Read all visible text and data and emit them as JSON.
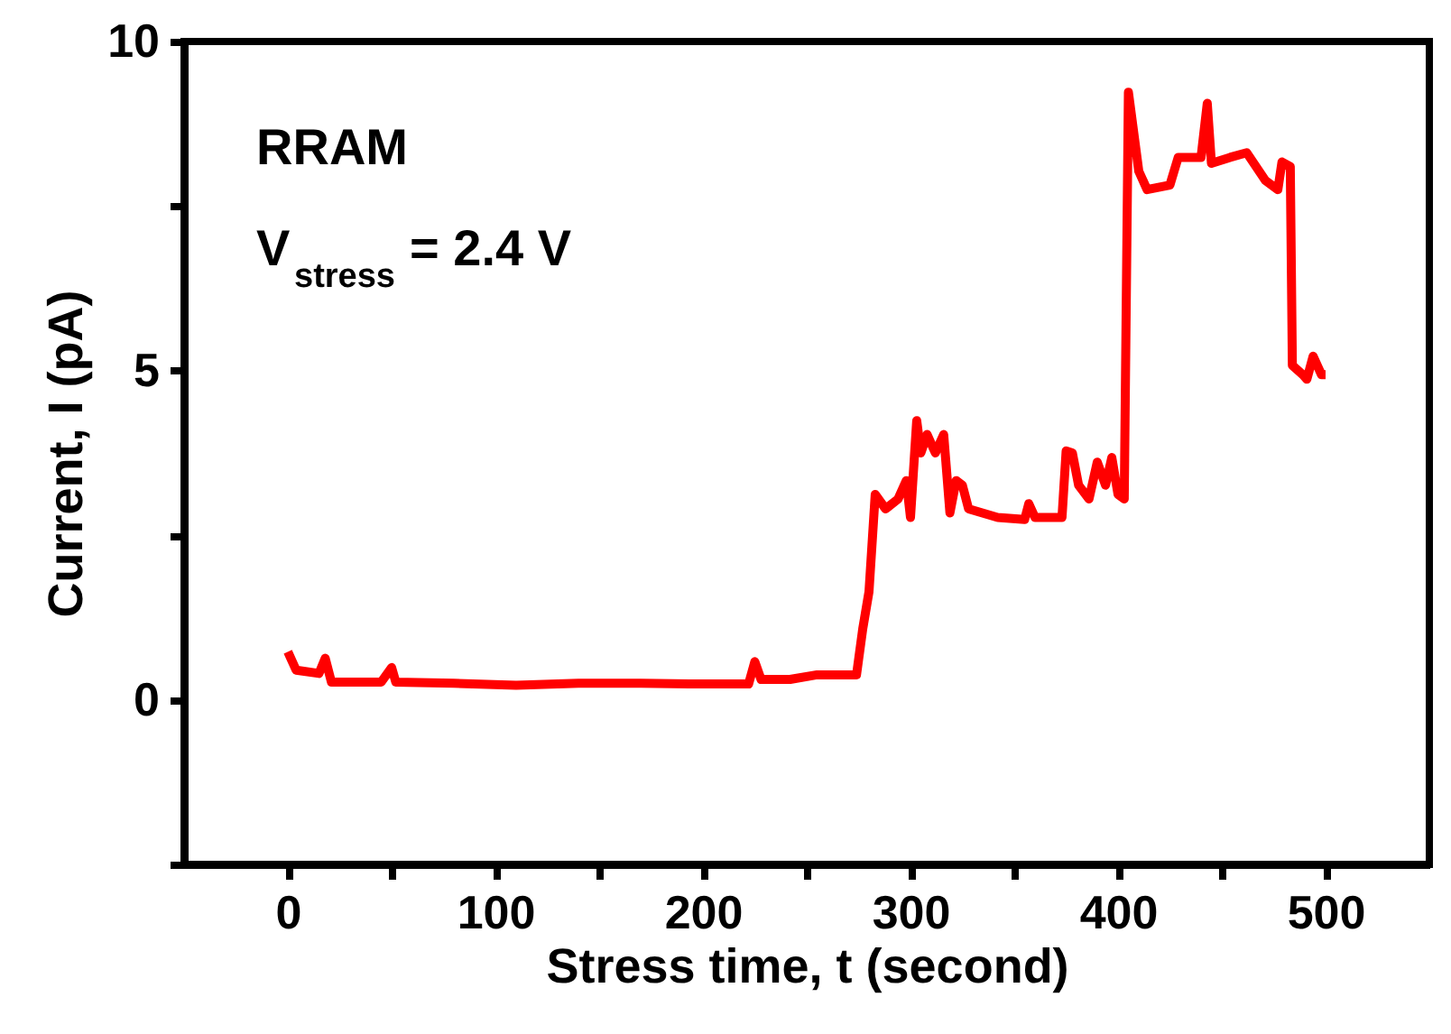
{
  "chart_data": {
    "type": "line",
    "xlabel": "Stress time, t (second)",
    "ylabel": "Current, I (pA)",
    "xlim": [
      -50,
      550
    ],
    "ylim": [
      -2.5,
      10
    ],
    "xticks": [
      0,
      {
        "value": 50,
        "label": null
      },
      100,
      {
        "value": 150,
        "label": null
      },
      200,
      {
        "value": 250,
        "label": null
      },
      300,
      {
        "value": 350,
        "label": null
      },
      400,
      {
        "value": 450,
        "label": null
      },
      500
    ],
    "yticks": [
      {
        "value": -2.5,
        "label": null
      },
      0,
      {
        "value": 2.5,
        "label": null
      },
      5,
      {
        "value": 7.5,
        "label": null
      },
      10
    ],
    "grid": false,
    "marker": "none",
    "line_style": "solid",
    "annotations": [
      "RRAM",
      "V$_{stress}$ = 2.4 V"
    ],
    "series": [
      {
        "color": "#ff0000",
        "x": [
          0,
          4,
          15,
          18,
          21,
          45,
          50,
          52,
          80,
          110,
          140,
          170,
          200,
          222,
          225,
          228,
          242,
          255,
          274,
          277,
          280,
          283,
          288,
          294,
          298,
          300,
          303,
          305,
          308,
          312,
          316,
          319,
          322,
          325,
          328,
          342,
          355,
          357,
          360,
          373,
          375,
          378,
          381,
          386,
          390,
          394,
          397,
          400,
          403,
          405,
          410,
          414,
          425,
          429,
          440,
          443,
          445,
          454,
          462,
          471,
          477,
          479,
          483,
          484,
          489,
          491,
          494,
          498,
          500
        ],
        "values": [
          0.73,
          0.45,
          0.4,
          0.63,
          0.27,
          0.27,
          0.49,
          0.27,
          0.25,
          0.22,
          0.25,
          0.25,
          0.24,
          0.24,
          0.58,
          0.31,
          0.31,
          0.38,
          0.38,
          1.08,
          1.64,
          3.12,
          2.9,
          3.05,
          3.33,
          2.77,
          4.24,
          3.75,
          4.03,
          3.75,
          4.03,
          2.84,
          3.33,
          3.26,
          2.9,
          2.77,
          2.74,
          2.98,
          2.77,
          2.77,
          3.78,
          3.75,
          3.26,
          3.05,
          3.61,
          3.26,
          3.68,
          3.12,
          3.05,
          9.23,
          8.03,
          7.75,
          7.82,
          8.24,
          8.24,
          9.06,
          8.15,
          8.24,
          8.31,
          7.89,
          7.75,
          8.17,
          8.1,
          5.08,
          4.94,
          4.87,
          5.22,
          4.94,
          4.94
        ]
      }
    ]
  }
}
